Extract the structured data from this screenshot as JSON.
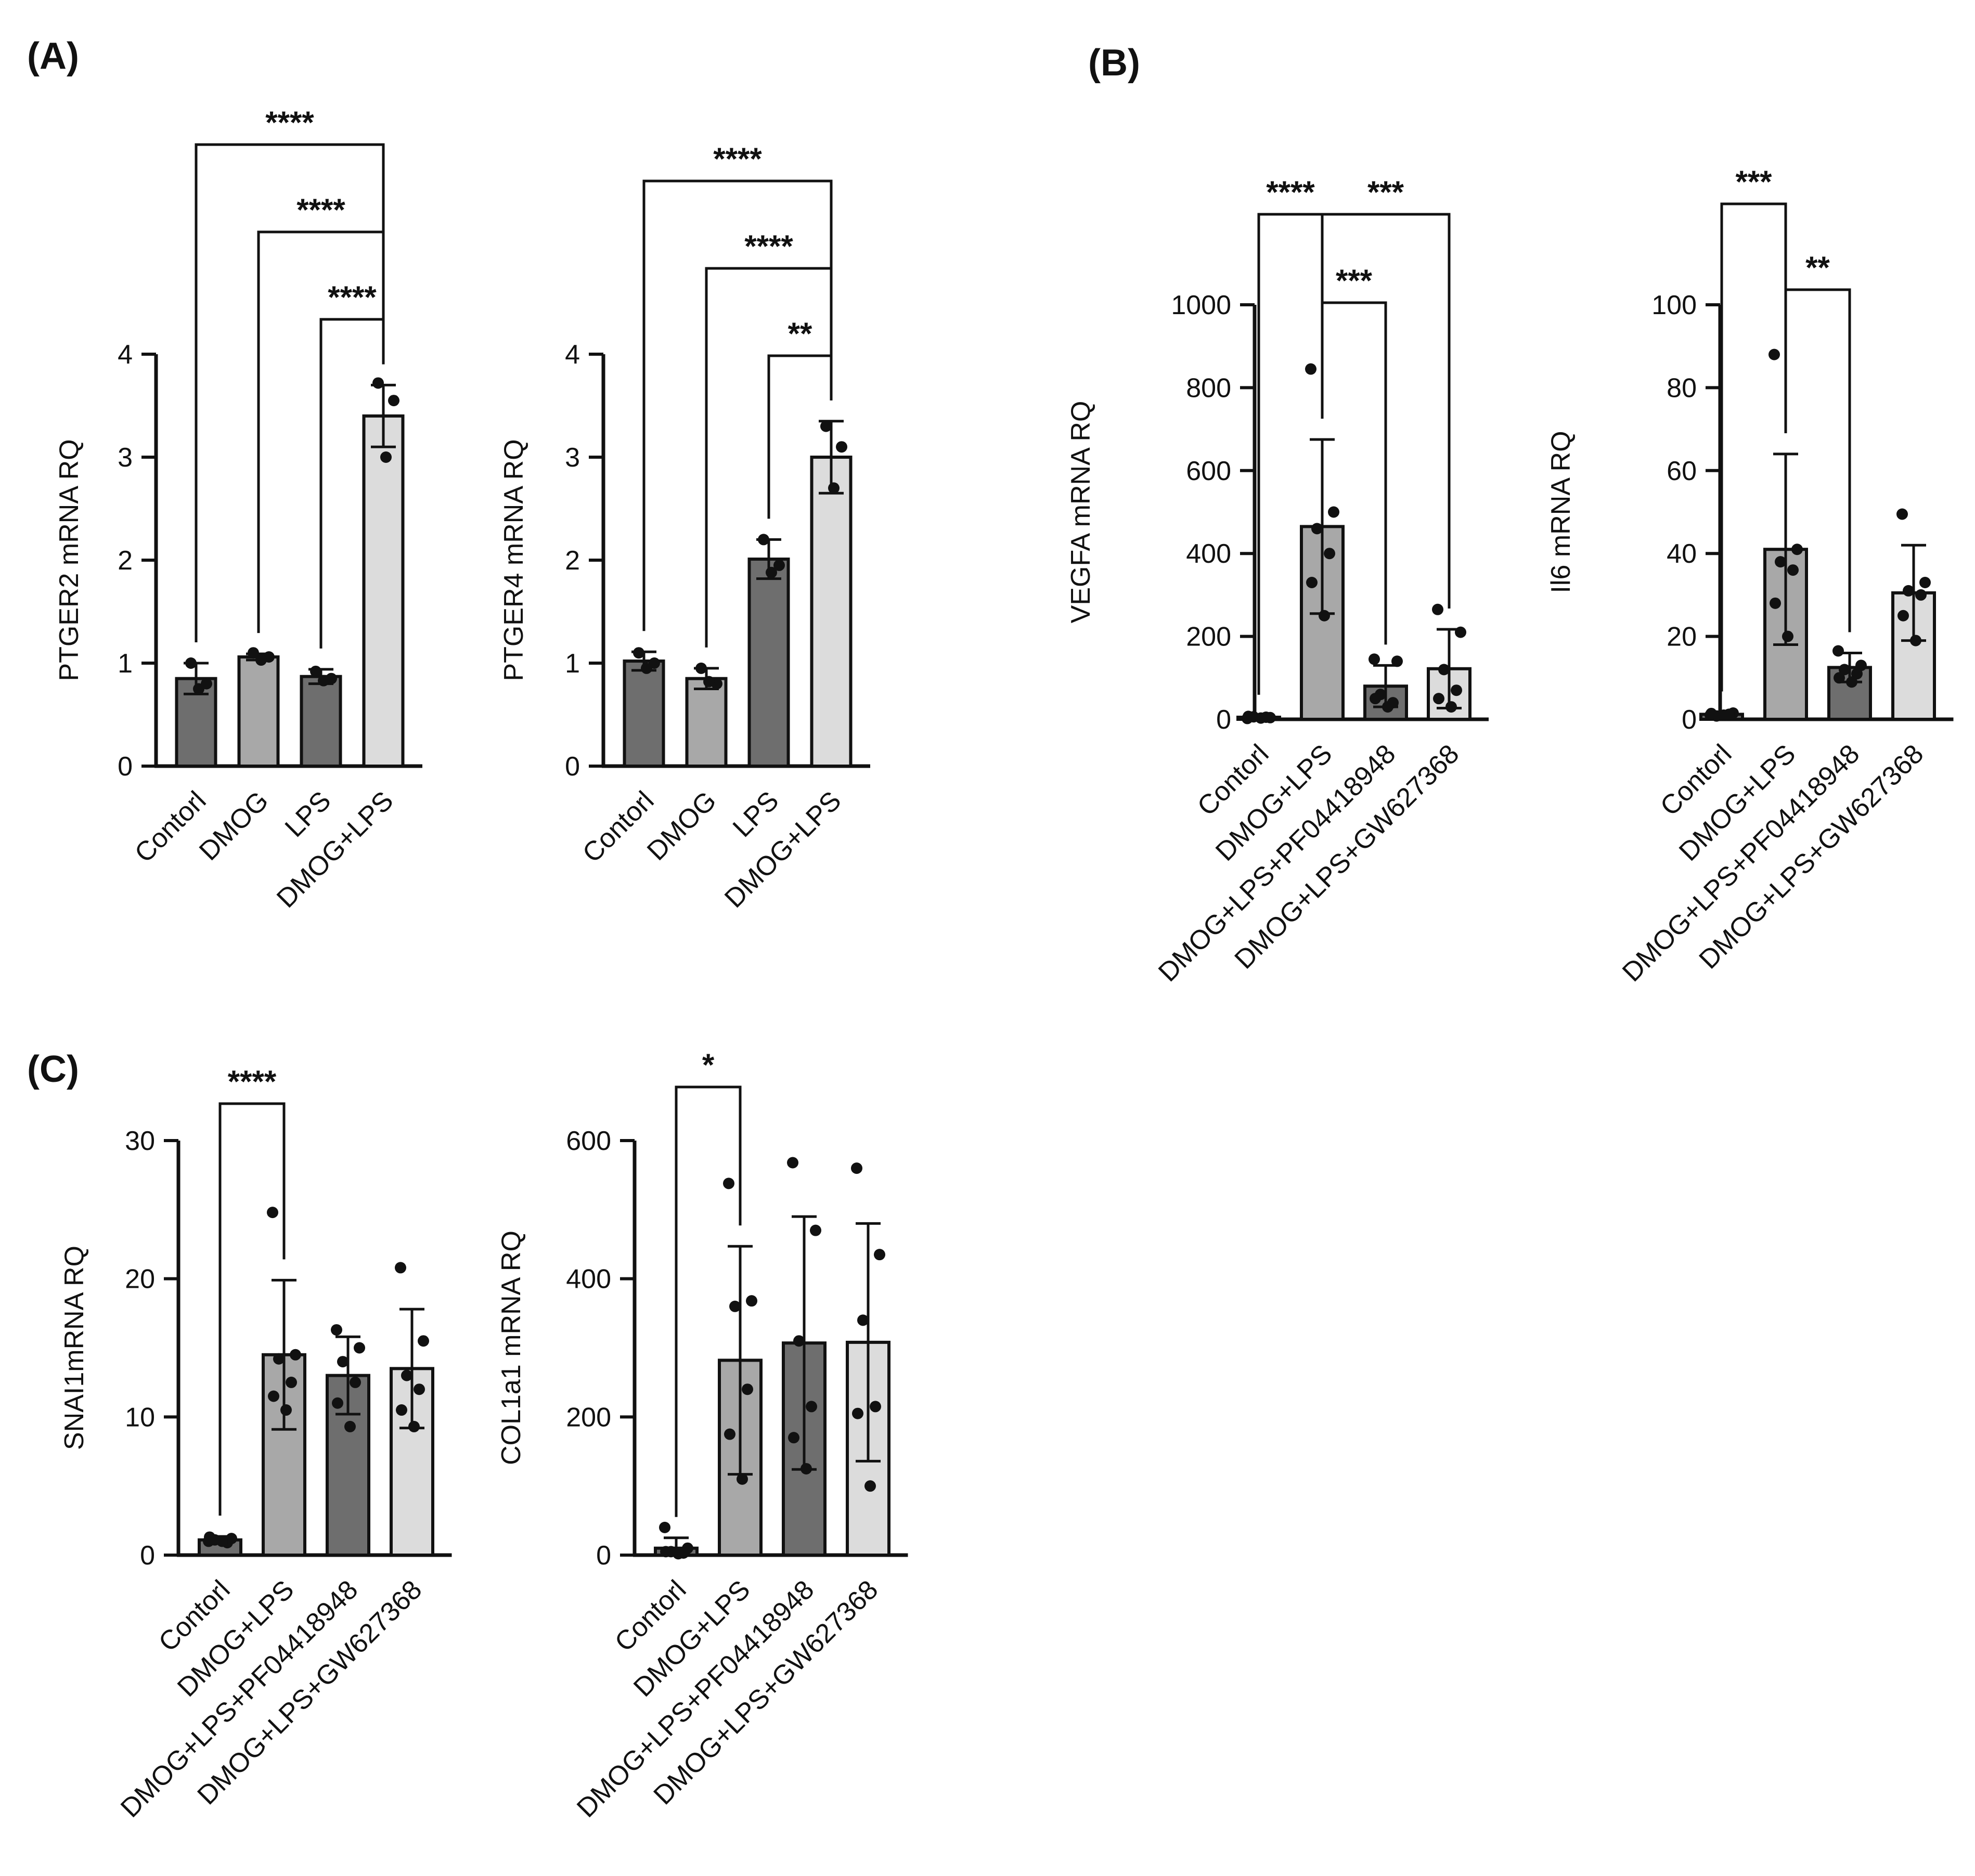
{
  "panel_labels": [
    "(A)",
    "(B)",
    "(C)"
  ],
  "colors": {
    "axis": "#111111",
    "bar_dark": "#6e6e6e",
    "bar_mid": "#a8a8a8",
    "bar_light": "#dcdcdc",
    "point": "#111111"
  },
  "chart_data": [
    {
      "id": "ptger2",
      "type": "bar",
      "ylabel": "PTGER2 mRNA RQ",
      "ylim": [
        0,
        4
      ],
      "yticks": [
        0,
        1,
        2,
        3,
        4
      ],
      "categories": [
        "Contorl",
        "DMOG",
        "LPS",
        "DMOG+LPS"
      ],
      "values": [
        0.85,
        1.06,
        0.87,
        3.4
      ],
      "sd": [
        0.15,
        0.03,
        0.07,
        0.3
      ],
      "points": [
        [
          1.0,
          0.8,
          0.75
        ],
        [
          1.1,
          1.06,
          1.03
        ],
        [
          0.92,
          0.85,
          0.83
        ],
        [
          3.72,
          3.55,
          3.0
        ]
      ],
      "colors": [
        "bar_dark",
        "bar_mid",
        "bar_dark",
        "bar_light"
      ],
      "significance": [
        {
          "from": 0,
          "to": 3,
          "label": "****"
        },
        {
          "from": 1,
          "to": 3,
          "label": "****"
        },
        {
          "from": 2,
          "to": 3,
          "label": "****"
        }
      ]
    },
    {
      "id": "ptger4",
      "type": "bar",
      "ylabel": "PTGER4  mRNA RQ",
      "ylim": [
        0,
        4
      ],
      "yticks": [
        0,
        1,
        2,
        3,
        4
      ],
      "categories": [
        "Contorl",
        "DMOG",
        "LPS",
        "DMOG+LPS"
      ],
      "values": [
        1.02,
        0.85,
        2.01,
        3.0
      ],
      "sd": [
        0.09,
        0.1,
        0.19,
        0.35
      ],
      "points": [
        [
          1.1,
          1.0,
          0.95
        ],
        [
          0.95,
          0.8,
          0.82
        ],
        [
          2.2,
          1.95,
          1.88
        ],
        [
          3.3,
          3.1,
          2.7
        ]
      ],
      "colors": [
        "bar_dark",
        "bar_mid",
        "bar_dark",
        "bar_light"
      ],
      "significance": [
        {
          "from": 0,
          "to": 3,
          "label": "****"
        },
        {
          "from": 1,
          "to": 3,
          "label": "****"
        },
        {
          "from": 2,
          "to": 3,
          "label": "**"
        }
      ]
    },
    {
      "id": "vegfa",
      "type": "bar",
      "ylabel": "VEGFA mRNA RQ",
      "ylim": [
        0,
        1000
      ],
      "yticks": [
        0,
        200,
        400,
        600,
        800,
        1000
      ],
      "categories": [
        "Contorl",
        "DMOG+LPS",
        "DMOG+LPS+PF04418948",
        "DMOG+LPS+GW627368"
      ],
      "values": [
        5,
        465,
        80,
        122
      ],
      "sd": [
        4,
        210,
        50,
        95
      ],
      "points": [
        [
          2,
          4,
          6,
          5,
          7,
          3
        ],
        [
          845,
          500,
          460,
          400,
          330,
          250
        ],
        [
          145,
          140,
          60,
          40,
          50,
          30
        ],
        [
          265,
          210,
          120,
          70,
          50,
          30
        ]
      ],
      "colors": [
        "bar_dark",
        "bar_mid",
        "bar_dark",
        "bar_light"
      ],
      "significance": [
        {
          "from": 0,
          "to": 1,
          "label": "****"
        },
        {
          "from": 1,
          "to": 3,
          "label": "***"
        },
        {
          "from": 1,
          "to": 2,
          "label": "***"
        }
      ]
    },
    {
      "id": "il6",
      "type": "bar",
      "ylabel": "Il6 mRNA RQ",
      "ylim": [
        0,
        100
      ],
      "yticks": [
        0,
        20,
        40,
        60,
        80,
        100
      ],
      "categories": [
        "Contorl",
        "DMOG+LPS",
        "DMOG+LPS+PF04418948",
        "DMOG+LPS+GW627368"
      ],
      "values": [
        1.2,
        41,
        12.5,
        30.5
      ],
      "sd": [
        0.5,
        23,
        3.5,
        11.5
      ],
      "points": [
        [
          1,
          1.5,
          0.8,
          1.2,
          1.4,
          1
        ],
        [
          88,
          41,
          38,
          36,
          28,
          20
        ],
        [
          16.5,
          13,
          12,
          11,
          10,
          9
        ],
        [
          49.5,
          33,
          31,
          30,
          25,
          19
        ]
      ],
      "colors": [
        "bar_dark",
        "bar_mid",
        "bar_dark",
        "bar_light"
      ],
      "significance": [
        {
          "from": 0,
          "to": 1,
          "label": "***"
        },
        {
          "from": 1,
          "to": 2,
          "label": "**"
        }
      ]
    },
    {
      "id": "snai1",
      "type": "bar",
      "ylabel": "SNAI1mRNA RQ",
      "ylim": [
        0,
        30
      ],
      "yticks": [
        0,
        10,
        20,
        30
      ],
      "categories": [
        "Contorl",
        "DMOG+LPS",
        "DMOG+LPS+PF04418948",
        "DMOG+LPS+GW627368"
      ],
      "values": [
        1.1,
        14.5,
        13.0,
        13.5
      ],
      "sd": [
        0.25,
        5.4,
        2.8,
        4.3
      ],
      "points": [
        [
          1,
          1.2,
          1.1,
          0.9,
          1.3,
          1
        ],
        [
          24.8,
          14.5,
          14.2,
          12.5,
          11.5,
          10.5
        ],
        [
          16.3,
          15,
          14,
          12.5,
          11,
          9.3
        ],
        [
          20.8,
          15.5,
          13,
          12,
          10.5,
          9.3
        ]
      ],
      "colors": [
        "bar_dark",
        "bar_mid",
        "bar_dark",
        "bar_light"
      ],
      "significance": [
        {
          "from": 0,
          "to": 1,
          "label": "****"
        }
      ]
    },
    {
      "id": "col1a1",
      "type": "bar",
      "ylabel": "COL1a1 mRNA RQ",
      "ylim": [
        0,
        600
      ],
      "yticks": [
        0,
        200,
        400,
        600
      ],
      "categories": [
        "Contorl",
        "DMOG+LPS",
        "DMOG+LPS+PF04418948",
        "DMOG+LPS+GW627368"
      ],
      "values": [
        10,
        282,
        307,
        308
      ],
      "sd": [
        15,
        165,
        183,
        172
      ],
      "points": [
        [
          40,
          10,
          5,
          3,
          5,
          2
        ],
        [
          538,
          368,
          360,
          240,
          175,
          110
        ],
        [
          568,
          470,
          310,
          215,
          170,
          125
        ],
        [
          560,
          435,
          340,
          215,
          205,
          100
        ]
      ],
      "colors": [
        "bar_dark",
        "bar_mid",
        "bar_dark",
        "bar_light"
      ],
      "significance": [
        {
          "from": 0,
          "to": 1,
          "label": "*"
        }
      ]
    }
  ]
}
